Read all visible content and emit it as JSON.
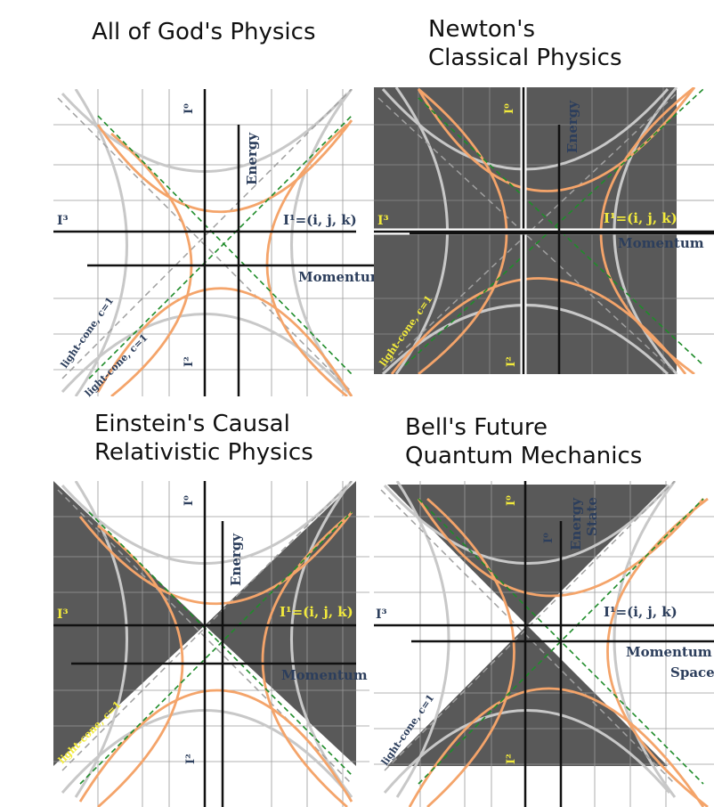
{
  "colors": {
    "axis": "#111111",
    "grid": "#9a9a9a",
    "hyperbola": "#f4a46a",
    "inner_hyperbola": "#c8c8c8",
    "light_cone": "#1f8c2a",
    "light_cone_gray": "#a0a0a0",
    "shade": "#595959",
    "label_navy": "#2c3e5c",
    "label_yellow": "#f2ea3c"
  },
  "panels": [
    {
      "id": "god",
      "title_lines": [
        "All of God's Physics"
      ],
      "labels": {
        "i0": "I⁰",
        "i1": "I¹=(i, j, k)",
        "i2": "I²",
        "i3": "I³",
        "energy": "Energy",
        "momentum": "Momentum",
        "light_cone_a": "light-cone, c=1",
        "light_cone_b": "light-cone, c=1"
      }
    },
    {
      "id": "newton",
      "title_lines": [
        "Newton's",
        "Classical Physics"
      ],
      "labels": {
        "i0": "I⁰",
        "i1": "I¹=(i, j, k)",
        "i2": "I²",
        "i3": "I³",
        "energy": "Energy",
        "momentum": "Momentum",
        "light_cone_a": "light-cone, c=1"
      }
    },
    {
      "id": "einstein",
      "title_lines": [
        "Einstein's Causal",
        "Relativistic Physics"
      ],
      "labels": {
        "i0": "I⁰",
        "i1": "I¹=(i, j, k)",
        "i2": "I²",
        "i3": "I³",
        "energy": "Energy",
        "momentum": "Momentum",
        "light_cone_a": "light-cone, c=1"
      }
    },
    {
      "id": "bell",
      "title_lines": [
        "Bell's Future",
        "Quantum Mechanics"
      ],
      "labels": {
        "i0_left": "I⁰",
        "i0_right": "I⁰",
        "i1": "I¹=(i, j, k)",
        "i2": "I²",
        "i3": "I³",
        "energy": "Energy",
        "state": "State",
        "momentum": "Momentum",
        "space": "Space",
        "light_cone_a": "light-cone, c=1"
      }
    }
  ]
}
